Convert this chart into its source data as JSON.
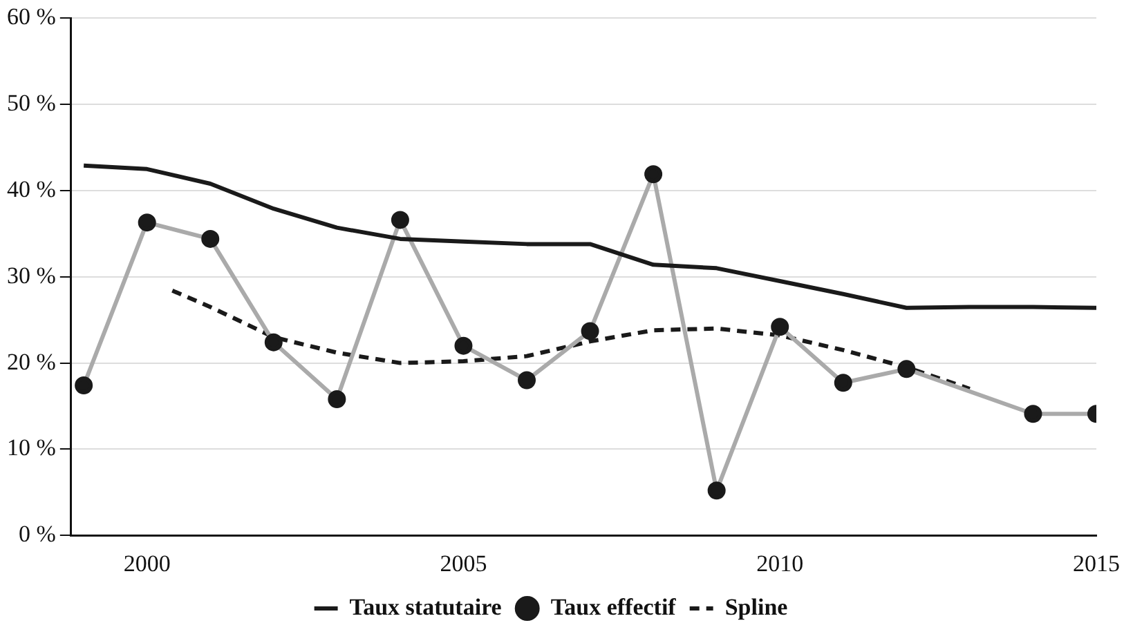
{
  "chart_data": {
    "type": "line",
    "x": [
      1999,
      2000,
      2001,
      2002,
      2003,
      2004,
      2005,
      2006,
      2007,
      2008,
      2009,
      2010,
      2011,
      2012,
      2013,
      2014,
      2015
    ],
    "series": [
      {
        "name": "Taux statutaire",
        "color": "#1a1a1a",
        "marker": "none",
        "line_style": "solid",
        "values": [
          42.9,
          42.5,
          40.8,
          37.9,
          35.7,
          34.4,
          34.1,
          33.8,
          33.8,
          31.4,
          31.0,
          29.5,
          28.0,
          26.4,
          26.5,
          26.5,
          26.4
        ]
      },
      {
        "name": "Taux effectif",
        "color": "#aaaaaa",
        "marker": "circle",
        "line_style": "solid",
        "values": [
          17.4,
          36.3,
          34.4,
          22.4,
          15.8,
          36.6,
          22.0,
          18.0,
          23.7,
          41.9,
          5.2,
          24.2,
          17.7,
          19.3,
          null,
          14.1,
          14.1
        ]
      },
      {
        "name": "Spline",
        "color": "#1a1a1a",
        "marker": "none",
        "line_style": "dashed",
        "x": [
          2000.4,
          2001,
          2002,
          2003,
          2004,
          2005,
          2006,
          2007,
          2008,
          2009,
          2010,
          2011,
          2012,
          2013
        ],
        "values": [
          28.4,
          26.5,
          23.0,
          21.2,
          20.0,
          20.2,
          20.8,
          22.5,
          23.8,
          24.0,
          23.2,
          21.5,
          19.5,
          17.0
        ]
      }
    ],
    "xlim": [
      1998.8,
      2015
    ],
    "xticks": [
      2000,
      2005,
      2010,
      2015
    ],
    "ylim": [
      0,
      60
    ],
    "yticks": [
      {
        "value": 0,
        "label": "0 %"
      },
      {
        "value": 10,
        "label": "10 %"
      },
      {
        "value": 20,
        "label": "20 %"
      },
      {
        "value": 30,
        "label": "30 %"
      },
      {
        "value": 40,
        "label": "40 %"
      },
      {
        "value": 50,
        "label": "50 %"
      },
      {
        "value": 60,
        "label": "60 %"
      }
    ],
    "grid": "y",
    "legend": "bottom"
  }
}
